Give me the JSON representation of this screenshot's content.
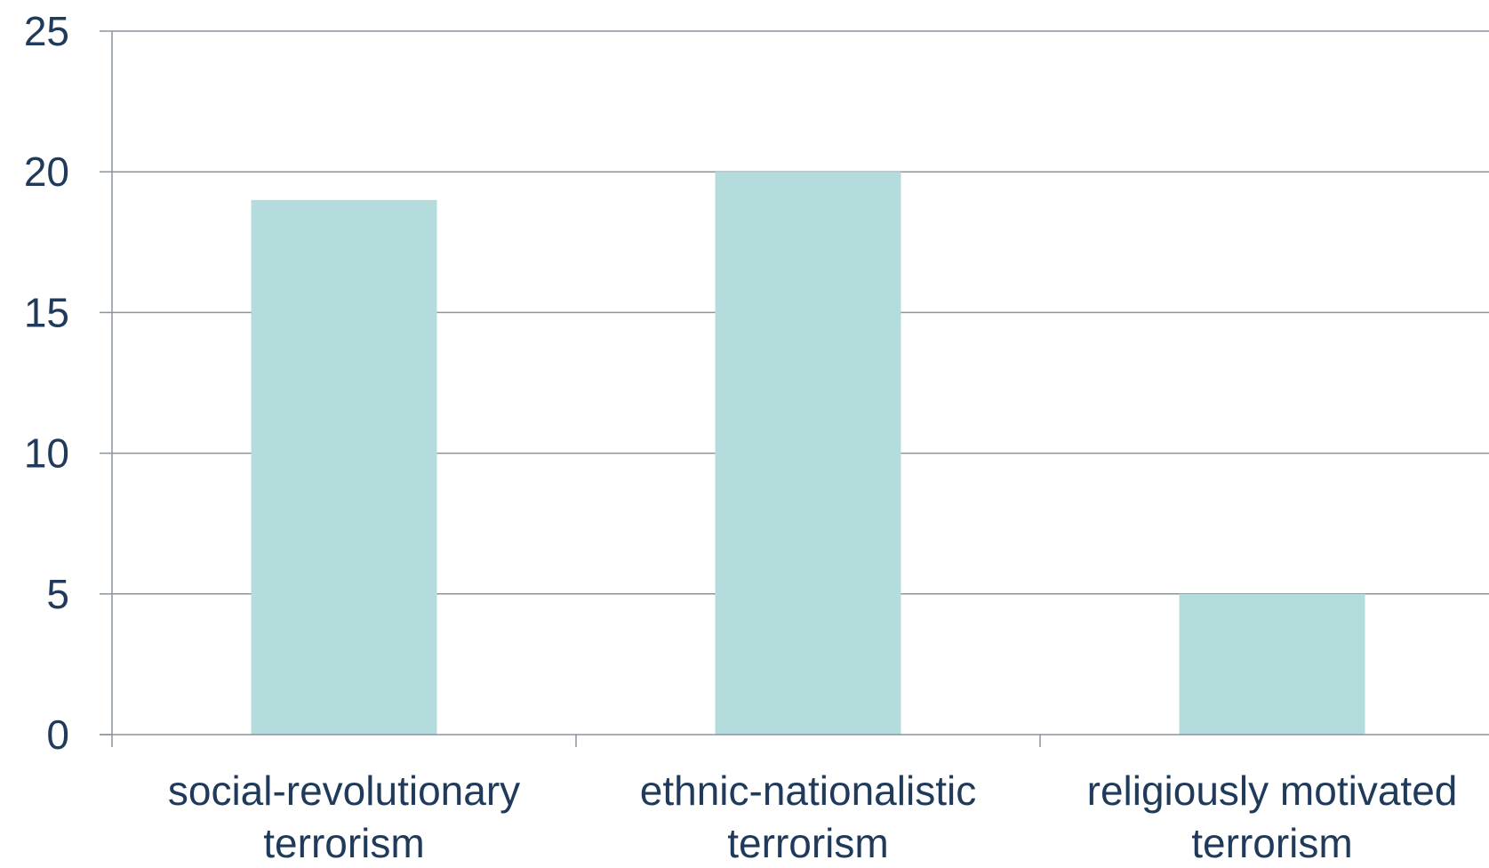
{
  "chart_data": {
    "type": "bar",
    "categories": [
      [
        "social-revolutionary",
        "terrorism"
      ],
      [
        "ethnic-nationalistic",
        "terrorism"
      ],
      [
        "religiously motivated",
        "terrorism"
      ]
    ],
    "values": [
      19,
      20,
      5
    ],
    "title": "",
    "xlabel": "",
    "ylabel": "",
    "ylim": [
      0,
      25
    ],
    "yticks": [
      0,
      5,
      10,
      15,
      20,
      25
    ],
    "grid": true,
    "legend": "none",
    "colors": {
      "bar": "#b4dcdc",
      "grid": "#8a949e",
      "axis": "#8a949e",
      "text": "#1f3a5a"
    }
  }
}
